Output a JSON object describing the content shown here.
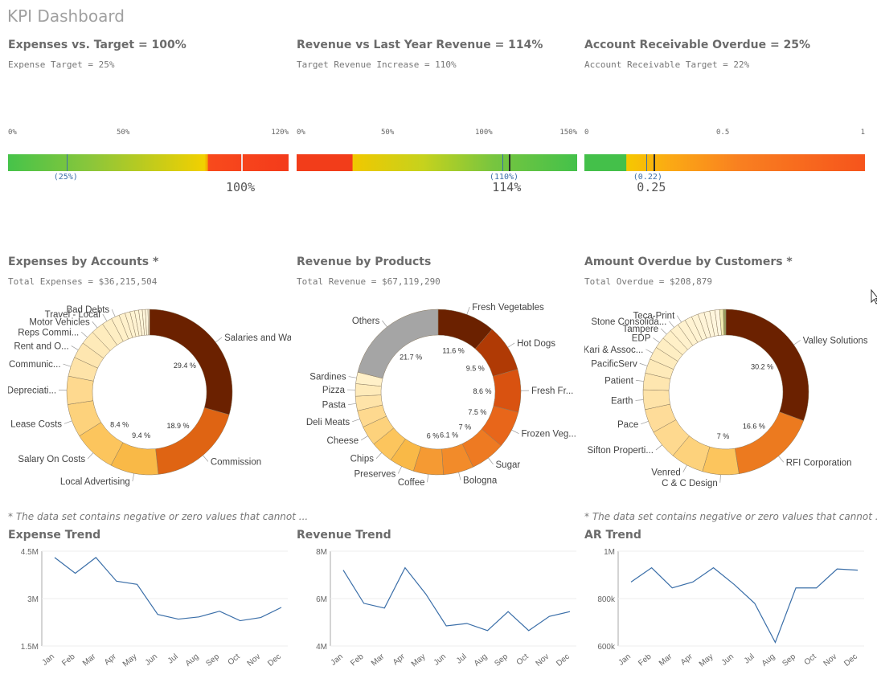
{
  "app": {
    "title": "KPI Dashboard"
  },
  "gauges": [
    {
      "title": "Expenses vs. Target = 100%",
      "subtitle": "Expense Target = 25%",
      "ticks": [
        "0%",
        "50%",
        "120%"
      ],
      "target_label": "(25%)",
      "value_label": "100%",
      "min": 0,
      "max": 1.2,
      "value": 1.0,
      "target": 0.25
    },
    {
      "title": "Revenue vs Last Year Revenue = 114%",
      "subtitle": "Target Revenue Increase = 110%",
      "ticks": [
        "0%",
        "50%",
        "100%",
        "150%"
      ],
      "target_label": "(110%)",
      "value_label": "114%",
      "min": 0,
      "max": 1.5,
      "value": 1.14,
      "target": 1.1
    },
    {
      "title": "Account Receivable Overdue = 25%",
      "subtitle": "Account Receivable Target = 22%",
      "ticks": [
        "0",
        "0.5",
        "1"
      ],
      "target_label": "(0.22)",
      "value_label": "0.25",
      "min": 0,
      "max": 1,
      "value": 0.25,
      "target": 0.22
    }
  ],
  "donuts": [
    {
      "title": "Expenses by Accounts *",
      "subtitle": "Total Expenses = $36,215,504",
      "footnote": "* The data set contains negative or zero values that cannot ...",
      "chart_data": {
        "type": "pie",
        "slices": [
          {
            "label": "Salaries and Wa...",
            "value": 29.4,
            "pct_label": "29.4 %",
            "color": "#6b2100"
          },
          {
            "label": "Commission",
            "value": 18.9,
            "pct_label": "18.9 %",
            "color": "#df6413"
          },
          {
            "label": "Local Advertising",
            "value": 9.4,
            "pct_label": "9.4 %",
            "color": "#f9b947"
          },
          {
            "label": "Salary On Costs",
            "value": 8.4,
            "pct_label": "8.4 %",
            "color": "#fcc55d"
          },
          {
            "label": "Lease Costs",
            "value": 6.5,
            "pct_label": "",
            "color": "#fdd27c"
          },
          {
            "label": "Depreciati...",
            "value": 5.5,
            "pct_label": "",
            "color": "#fed98f"
          },
          {
            "label": "Communic...",
            "value": 3.8,
            "pct_label": "",
            "color": "#fee3a8"
          },
          {
            "label": "Rent and O...",
            "value": 3.2,
            "pct_label": "",
            "color": "#fee6b0"
          },
          {
            "label": "Reps Commi...",
            "value": 2.8,
            "pct_label": "",
            "color": "#feeab9"
          },
          {
            "label": "Motor Vehicles",
            "value": 2.5,
            "pct_label": "",
            "color": "#feecbe"
          },
          {
            "label": "Travel - Local",
            "value": 2.0,
            "pct_label": "",
            "color": "#feeec3"
          },
          {
            "label": "Bad Debts",
            "value": 1.6,
            "pct_label": "",
            "color": "#fff0c8"
          },
          {
            "label": "",
            "value": 1.2,
            "pct_label": "",
            "color": "#fff1cc"
          },
          {
            "label": "",
            "value": 1.0,
            "pct_label": "",
            "color": "#fff2cf"
          },
          {
            "label": "",
            "value": 0.9,
            "pct_label": "",
            "color": "#fff3d2"
          },
          {
            "label": "",
            "value": 0.8,
            "pct_label": "",
            "color": "#fff4d5"
          },
          {
            "label": "",
            "value": 0.7,
            "pct_label": "",
            "color": "#fff4d8"
          },
          {
            "label": "",
            "value": 0.6,
            "pct_label": "",
            "color": "#fff5da"
          },
          {
            "label": "",
            "value": 0.5,
            "pct_label": "",
            "color": "#fff6dd"
          },
          {
            "label": "",
            "value": 0.3,
            "pct_label": "",
            "color": "#fff6e0"
          }
        ]
      }
    },
    {
      "title": "Revenue by Products",
      "subtitle": "Total Revenue = $67,119,290",
      "footnote": "",
      "chart_data": {
        "type": "pie",
        "slices": [
          {
            "label": "Fresh Vegetables",
            "value": 11.6,
            "pct_label": "11.6 %",
            "color": "#6b2100"
          },
          {
            "label": "Hot Dogs",
            "value": 9.5,
            "pct_label": "9.5 %",
            "color": "#b03a05"
          },
          {
            "label": "Fresh Fr...",
            "value": 8.6,
            "pct_label": "8.6 %",
            "color": "#d95210"
          },
          {
            "label": "Frozen Veg...",
            "value": 7.5,
            "pct_label": "7.5 %",
            "color": "#e8661a"
          },
          {
            "label": "Sugar",
            "value": 7.0,
            "pct_label": "7 %",
            "color": "#ee7a22"
          },
          {
            "label": "Bologna",
            "value": 6.1,
            "pct_label": "6.1 %",
            "color": "#f28b2a"
          },
          {
            "label": "Coffee",
            "value": 6.0,
            "pct_label": "6 %",
            "color": "#f59a33"
          },
          {
            "label": "Preserves",
            "value": 5.0,
            "pct_label": "",
            "color": "#f9b947"
          },
          {
            "label": "Chips",
            "value": 4.6,
            "pct_label": "",
            "color": "#fcc55d"
          },
          {
            "label": "Cheese",
            "value": 4.0,
            "pct_label": "",
            "color": "#fdd27c"
          },
          {
            "label": "Deli Meats",
            "value": 3.4,
            "pct_label": "",
            "color": "#fed98f"
          },
          {
            "label": "Pasta",
            "value": 2.9,
            "pct_label": "",
            "color": "#fee3a8"
          },
          {
            "label": "Pizza",
            "value": 2.5,
            "pct_label": "",
            "color": "#feeab9"
          },
          {
            "label": "Sardines",
            "value": 2.3,
            "pct_label": "",
            "color": "#fff0c8"
          },
          {
            "label": "Others",
            "value": 21.7,
            "pct_label": "21.7 %",
            "color": "#a5a5a5"
          }
        ]
      }
    },
    {
      "title": "Amount Overdue by Customers *",
      "subtitle": "Total Overdue = $208,879",
      "footnote": "* The data set contains negative or zero values that cannot ...",
      "chart_data": {
        "type": "pie",
        "slices": [
          {
            "label": "Valley  Solutions",
            "value": 30.2,
            "pct_label": "30.2 %",
            "color": "#6b2100"
          },
          {
            "label": "RFI Corporation",
            "value": 16.6,
            "pct_label": "16.6 %",
            "color": "#ec7a1f"
          },
          {
            "label": "C & C  Design",
            "value": 7.0,
            "pct_label": "7 %",
            "color": "#fcc55d"
          },
          {
            "label": "Venred",
            "value": 6.4,
            "pct_label": "",
            "color": "#fdd27c"
          },
          {
            "label": "Sifton Properti...",
            "value": 5.8,
            "pct_label": "",
            "color": "#fed98f"
          },
          {
            "label": "Pace",
            "value": 4.6,
            "pct_label": "",
            "color": "#fedc99"
          },
          {
            "label": "Earth",
            "value": 3.8,
            "pct_label": "",
            "color": "#fee3a8"
          },
          {
            "label": "Patient",
            "value": 3.2,
            "pct_label": "",
            "color": "#fee6b0"
          },
          {
            "label": "PacificServ",
            "value": 2.8,
            "pct_label": "",
            "color": "#feeab9"
          },
          {
            "label": "Kari & Assoc...",
            "value": 2.5,
            "pct_label": "",
            "color": "#feecbe"
          },
          {
            "label": "EDP",
            "value": 2.2,
            "pct_label": "",
            "color": "#feeec3"
          },
          {
            "label": "Tampere",
            "value": 2.0,
            "pct_label": "",
            "color": "#fff0c8"
          },
          {
            "label": "Stone Consolida...",
            "value": 1.8,
            "pct_label": "",
            "color": "#fff1cc"
          },
          {
            "label": "Teca-Print",
            "value": 1.6,
            "pct_label": "",
            "color": "#fff2cf"
          },
          {
            "label": "",
            "value": 1.4,
            "pct_label": "",
            "color": "#fff3d2"
          },
          {
            "label": "",
            "value": 1.3,
            "pct_label": "",
            "color": "#fff4d5"
          },
          {
            "label": "",
            "value": 1.2,
            "pct_label": "",
            "color": "#fff4d8"
          },
          {
            "label": "",
            "value": 1.1,
            "pct_label": "",
            "color": "#fff5da"
          },
          {
            "label": "",
            "value": 1.0,
            "pct_label": "",
            "color": "#fff6dd"
          },
          {
            "label": "",
            "value": 0.9,
            "pct_label": "",
            "color": "#fff6e0"
          },
          {
            "label": "",
            "value": 0.7,
            "pct_label": "",
            "color": "#f0eab0"
          },
          {
            "label": "",
            "value": 0.5,
            "pct_label": "",
            "color": "#9aa060"
          }
        ]
      }
    }
  ],
  "trends": [
    {
      "title": "Expense Trend",
      "chart_data": {
        "type": "line",
        "x": [
          "Jan",
          "Feb",
          "Mar",
          "Apr",
          "May",
          "Jun",
          "Jul",
          "Aug",
          "Sep",
          "Oct",
          "Nov",
          "Dec"
        ],
        "series": [
          {
            "values": [
              4.3,
              3.8,
              4.3,
              3.55,
              3.45,
              2.5,
              2.35,
              2.42,
              2.6,
              2.3,
              2.4,
              2.72
            ]
          }
        ],
        "yticks": [
          {
            "v": 4.5,
            "label": "4.5M"
          },
          {
            "v": 3,
            "label": "3M"
          },
          {
            "v": 1.5,
            "label": "1.5M"
          }
        ],
        "ylim": [
          1.5,
          4.5
        ],
        "color": "#3a6ea8"
      }
    },
    {
      "title": "Revenue Trend",
      "chart_data": {
        "type": "line",
        "x": [
          "Jan",
          "Feb",
          "Mar",
          "Apr",
          "May",
          "Jun",
          "Jul",
          "Aug",
          "Sep",
          "Oct",
          "Nov",
          "Dec"
        ],
        "series": [
          {
            "values": [
              7.2,
              5.8,
              5.6,
              7.3,
              6.2,
              4.85,
              4.95,
              4.65,
              5.45,
              4.65,
              5.25,
              5.45
            ]
          }
        ],
        "yticks": [
          {
            "v": 8,
            "label": "8M"
          },
          {
            "v": 6,
            "label": "6M"
          },
          {
            "v": 4,
            "label": "4M"
          }
        ],
        "ylim": [
          4,
          8
        ],
        "color": "#3a6ea8"
      }
    },
    {
      "title": "AR Trend",
      "chart_data": {
        "type": "line",
        "x": [
          "Jan",
          "Feb",
          "Mar",
          "Apr",
          "May",
          "Jun",
          "Jul",
          "Aug",
          "Sep",
          "Oct",
          "Nov",
          "Dec"
        ],
        "series": [
          {
            "values": [
              870,
              930,
              845,
              870,
              930,
              860,
              780,
              615,
              845,
              845,
              925,
              920
            ]
          }
        ],
        "yticks": [
          {
            "v": 1000,
            "label": "1M"
          },
          {
            "v": 800,
            "label": "800k"
          },
          {
            "v": 600,
            "label": "600k"
          }
        ],
        "ylim": [
          600,
          1000
        ],
        "color": "#3a6ea8"
      }
    }
  ]
}
